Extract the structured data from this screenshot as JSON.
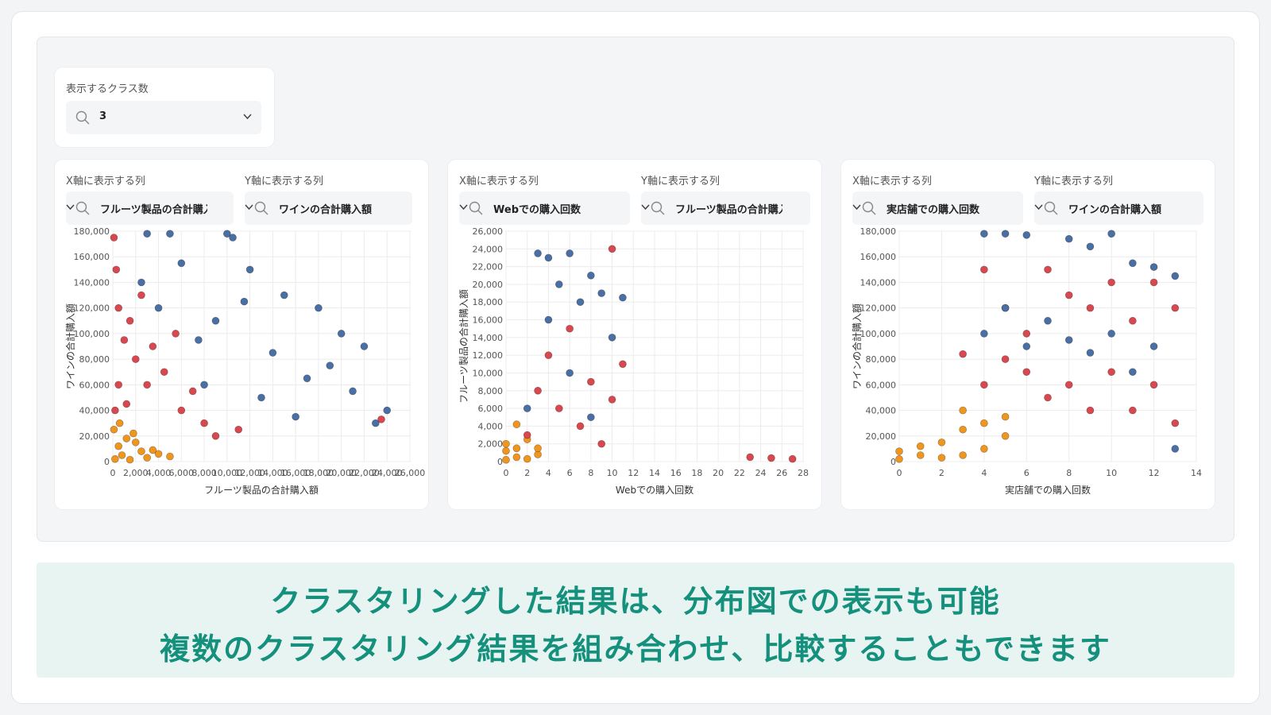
{
  "class_selector": {
    "label": "表示するクラス数",
    "value": "3"
  },
  "charts": [
    {
      "x_label": "X軸に表示する列",
      "y_label": "Y軸に表示する列",
      "x_value": "フルーツ製品の合計購入額",
      "y_value": "ワインの合計購入額"
    },
    {
      "x_label": "X軸に表示する列",
      "y_label": "Y軸に表示する列",
      "x_value": "Webでの購入回数",
      "y_value": "フルーツ製品の合計購入額"
    },
    {
      "x_label": "X軸に表示する列",
      "y_label": "Y軸に表示する列",
      "x_value": "実店舗での購入回数",
      "y_value": "ワインの合計購入額"
    }
  ],
  "caption": {
    "line1": "クラスタリングした結果は、分布図での表示も可能",
    "line2": "複数のクラスタリング結果を組み合わせ、比較することもできます"
  },
  "colors": {
    "cluster_blue": "#4a6fa5",
    "cluster_red": "#d9484f",
    "cluster_orange": "#f0961e",
    "accent_text": "#14907c"
  },
  "icons": {
    "select_prefix": "search-icon",
    "select_suffix": "chevron-down-icon"
  },
  "chart_data": [
    {
      "type": "scatter",
      "xlabel": "フルーツ製品の合計購入額",
      "ylabel": "ワインの合計購入額",
      "xlim": [
        0,
        26000
      ],
      "ylim": [
        0,
        180000
      ],
      "x_ticks": [
        "0",
        "2,000",
        "4,000",
        "6,000",
        "8,000",
        "10,000",
        "12,000",
        "14,000",
        "16,000",
        "18,000",
        "20,000",
        "22,000",
        "24,000",
        "26,000"
      ],
      "y_ticks": [
        "0",
        "20,000",
        "40,000",
        "60,000",
        "80,000",
        "100,000",
        "120,000",
        "140,000",
        "160,000",
        "180,000"
      ],
      "grid": true,
      "series": [
        {
          "points": [
            [
              200,
              2000
            ],
            [
              800,
              5000
            ],
            [
              1500,
              1500
            ],
            [
              2500,
              8000
            ],
            [
              500,
              12000
            ],
            [
              1200,
              18000
            ],
            [
              3000,
              3000
            ],
            [
              4000,
              6000
            ],
            [
              100,
              25000
            ],
            [
              2000,
              15000
            ],
            [
              3500,
              9000
            ],
            [
              600,
              30000
            ],
            [
              5000,
              4000
            ],
            [
              1800,
              22000
            ]
          ]
        },
        {
          "points": [
            [
              100,
              175000
            ],
            [
              300,
              150000
            ],
            [
              500,
              120000
            ],
            [
              1000,
              95000
            ],
            [
              2000,
              80000
            ],
            [
              3000,
              60000
            ],
            [
              4500,
              70000
            ],
            [
              6000,
              40000
            ],
            [
              8000,
              30000
            ],
            [
              500,
              60000
            ],
            [
              1500,
              110000
            ],
            [
              2500,
              130000
            ],
            [
              3500,
              90000
            ],
            [
              7000,
              55000
            ],
            [
              9000,
              20000
            ],
            [
              200,
              40000
            ],
            [
              1200,
              45000
            ],
            [
              5500,
              100000
            ],
            [
              11000,
              25000
            ],
            [
              23500,
              33000
            ]
          ]
        },
        {
          "points": [
            [
              3000,
              178000
            ],
            [
              5000,
              178000
            ],
            [
              10000,
              178000
            ],
            [
              10500,
              175000
            ],
            [
              6000,
              155000
            ],
            [
              12000,
              150000
            ],
            [
              15000,
              130000
            ],
            [
              18000,
              120000
            ],
            [
              20000,
              100000
            ],
            [
              22000,
              90000
            ],
            [
              24000,
              40000
            ],
            [
              23000,
              30000
            ],
            [
              19000,
              75000
            ],
            [
              17000,
              65000
            ],
            [
              14000,
              85000
            ],
            [
              9000,
              110000
            ],
            [
              8000,
              60000
            ],
            [
              4000,
              120000
            ],
            [
              7500,
              95000
            ],
            [
              13000,
              50000
            ],
            [
              16000,
              35000
            ],
            [
              21000,
              55000
            ],
            [
              2500,
              140000
            ],
            [
              11500,
              125000
            ]
          ]
        }
      ]
    },
    {
      "type": "scatter",
      "xlabel": "Webでの購入回数",
      "ylabel": "フルーツ製品の合計購入額",
      "xlim": [
        0,
        28
      ],
      "ylim": [
        0,
        26000
      ],
      "x_ticks": [
        "0",
        "2",
        "4",
        "6",
        "8",
        "10",
        "12",
        "14",
        "16",
        "18",
        "20",
        "22",
        "24",
        "26",
        "28"
      ],
      "y_ticks": [
        "0",
        "2,000",
        "4,000",
        "6,000",
        "8,000",
        "10,000",
        "12,000",
        "14,000",
        "16,000",
        "18,000",
        "20,000",
        "22,000",
        "24,000",
        "26,000"
      ],
      "grid": true,
      "series": [
        {
          "points": [
            [
              0,
              200
            ],
            [
              0,
              1200
            ],
            [
              0,
              2000
            ],
            [
              1,
              500
            ],
            [
              1,
              1500
            ],
            [
              2,
              300
            ],
            [
              2,
              2500
            ],
            [
              3,
              800
            ],
            [
              1,
              4200
            ],
            [
              3,
              1500
            ]
          ]
        },
        {
          "points": [
            [
              2,
              3000
            ],
            [
              3,
              8000
            ],
            [
              4,
              12000
            ],
            [
              5,
              6000
            ],
            [
              6,
              15000
            ],
            [
              7,
              4000
            ],
            [
              8,
              9000
            ],
            [
              9,
              2000
            ],
            [
              10,
              7000
            ],
            [
              11,
              11000
            ],
            [
              10,
              24000
            ],
            [
              23,
              500
            ],
            [
              25,
              400
            ],
            [
              27,
              300
            ]
          ]
        },
        {
          "points": [
            [
              3,
              23500
            ],
            [
              4,
              23000
            ],
            [
              5,
              20000
            ],
            [
              6,
              23500
            ],
            [
              7,
              18000
            ],
            [
              8,
              21000
            ],
            [
              9,
              19000
            ],
            [
              10,
              14000
            ],
            [
              11,
              18500
            ],
            [
              2,
              6000
            ],
            [
              4,
              16000
            ],
            [
              6,
              10000
            ],
            [
              8,
              5000
            ]
          ]
        }
      ]
    },
    {
      "type": "scatter",
      "xlabel": "実店舗での購入回数",
      "ylabel": "ワインの合計購入額",
      "xlim": [
        0,
        14
      ],
      "ylim": [
        0,
        180000
      ],
      "x_ticks": [
        "0",
        "2",
        "4",
        "6",
        "8",
        "10",
        "12",
        "14"
      ],
      "y_ticks": [
        "0",
        "20,000",
        "40,000",
        "60,000",
        "80,000",
        "100,000",
        "120,000",
        "140,000",
        "160,000",
        "180,000"
      ],
      "grid": true,
      "series": [
        {
          "points": [
            [
              0,
              2000
            ],
            [
              0,
              8000
            ],
            [
              1,
              5000
            ],
            [
              1,
              12000
            ],
            [
              2,
              3000
            ],
            [
              2,
              15000
            ],
            [
              3,
              5000
            ],
            [
              3,
              25000
            ],
            [
              3,
              40000
            ],
            [
              4,
              10000
            ],
            [
              4,
              30000
            ],
            [
              5,
              20000
            ],
            [
              5,
              35000
            ]
          ]
        },
        {
          "points": [
            [
              3,
              84000
            ],
            [
              4,
              150000
            ],
            [
              5,
              120000
            ],
            [
              6,
              100000
            ],
            [
              7,
              150000
            ],
            [
              8,
              130000
            ],
            [
              9,
              120000
            ],
            [
              10,
              140000
            ],
            [
              11,
              110000
            ],
            [
              12,
              140000
            ],
            [
              13,
              120000
            ],
            [
              4,
              60000
            ],
            [
              5,
              80000
            ],
            [
              6,
              70000
            ],
            [
              7,
              50000
            ],
            [
              8,
              60000
            ],
            [
              9,
              40000
            ],
            [
              10,
              70000
            ],
            [
              11,
              40000
            ],
            [
              12,
              60000
            ],
            [
              13,
              30000
            ]
          ]
        },
        {
          "points": [
            [
              4,
              178000
            ],
            [
              5,
              178000
            ],
            [
              6,
              177000
            ],
            [
              8,
              174000
            ],
            [
              9,
              168000
            ],
            [
              10,
              178000
            ],
            [
              11,
              155000
            ],
            [
              12,
              152000
            ],
            [
              13,
              145000
            ],
            [
              4,
              100000
            ],
            [
              5,
              120000
            ],
            [
              6,
              90000
            ],
            [
              7,
              110000
            ],
            [
              8,
              95000
            ],
            [
              9,
              85000
            ],
            [
              10,
              100000
            ],
            [
              11,
              70000
            ],
            [
              12,
              90000
            ],
            [
              13,
              10000
            ]
          ]
        }
      ]
    }
  ]
}
